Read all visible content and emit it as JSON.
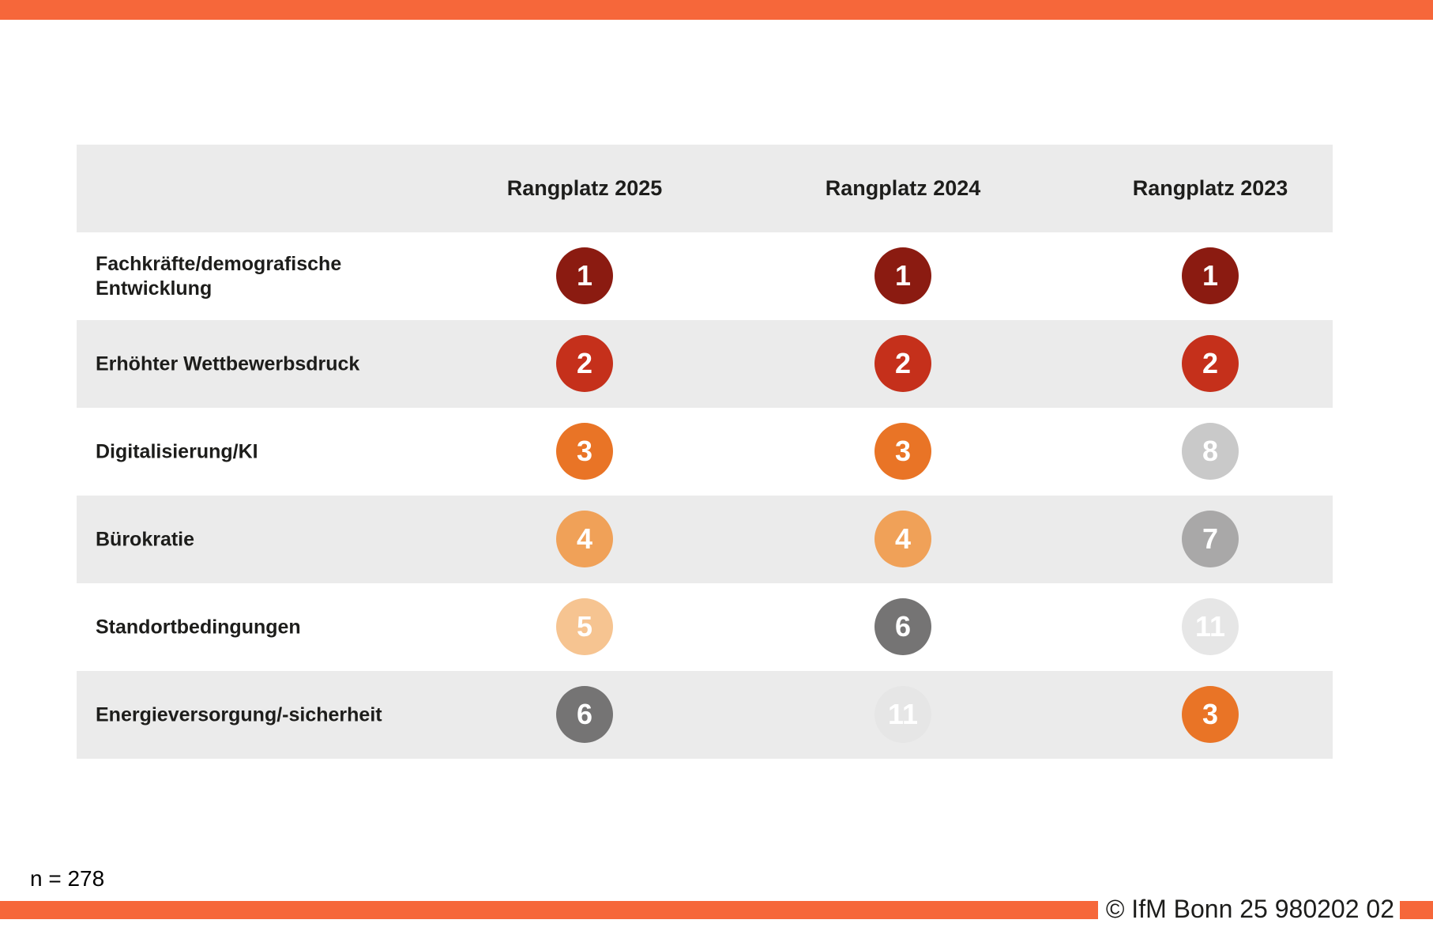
{
  "brand": {
    "bar_color": "#F6673A"
  },
  "table": {
    "header": {
      "columns": [
        "Rangplatz 2025",
        "Rangplatz 2024",
        "Rangplatz 2023"
      ]
    },
    "rows": [
      {
        "label": "Fachkräfte/demografische Entwicklung",
        "ranks": [
          1,
          1,
          1
        ]
      },
      {
        "label": "Erhöhter Wettbewerbsdruck",
        "ranks": [
          2,
          2,
          2
        ]
      },
      {
        "label": "Digitalisierung/KI",
        "ranks": [
          3,
          3,
          8
        ]
      },
      {
        "label": "Bürokratie",
        "ranks": [
          4,
          4,
          7
        ]
      },
      {
        "label": "Standortbedingungen",
        "ranks": [
          5,
          6,
          11
        ]
      },
      {
        "label": "Energieversorgung/-sicherheit",
        "ranks": [
          6,
          11,
          3
        ]
      }
    ],
    "row_band_color": "#EBEBEB"
  },
  "rank_colors": {
    "1": "#8B1B11",
    "2": "#C5301B",
    "3": "#E97426",
    "4": "#F0A158",
    "5": "#F6C491",
    "6": "#757474",
    "7": "#A9A8A8",
    "8": "#C9C9C9",
    "11": "#E6E6E6"
  },
  "footnote": "n = 278",
  "copyright": "© IfM Bonn 25 980202 02",
  "chart_data": {
    "type": "table",
    "title": "",
    "columns": [
      "Rangplatz 2025",
      "Rangplatz 2024",
      "Rangplatz 2023"
    ],
    "categories": [
      "Fachkräfte/demografische Entwicklung",
      "Erhöhter Wettbewerbsdruck",
      "Digitalisierung/KI",
      "Bürokratie",
      "Standortbedingungen",
      "Energieversorgung/-sicherheit"
    ],
    "series": [
      {
        "name": "Rangplatz 2025",
        "values": [
          1,
          2,
          3,
          4,
          5,
          6
        ]
      },
      {
        "name": "Rangplatz 2024",
        "values": [
          1,
          2,
          3,
          4,
          6,
          11
        ]
      },
      {
        "name": "Rangplatz 2023",
        "values": [
          1,
          2,
          8,
          7,
          11,
          3
        ]
      }
    ],
    "annotations": [
      "n = 278",
      "© IfM Bonn 25 980202 02"
    ],
    "legend_position": "none",
    "grid": false
  }
}
